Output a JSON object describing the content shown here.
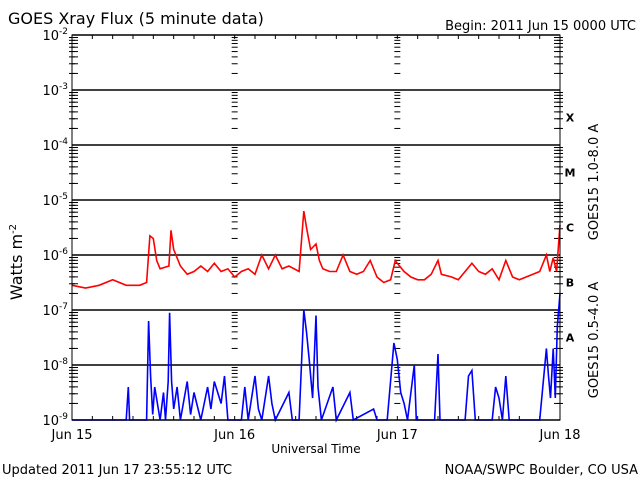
{
  "chart_data": {
    "type": "line",
    "title": "GOES Xray Flux (5 minute data)",
    "begin_label": "Begin:  2011 Jun 15 0000 UTC",
    "xlabel": "Universal Time",
    "ylabel": "Watts m",
    "ylabel_sup": "-2",
    "x_unit": "hours since 2011 Jun 15 0000 UTC",
    "xlim": [
      0,
      72
    ],
    "ylim": [
      1e-09,
      0.01
    ],
    "yscale": "log",
    "grid": true,
    "x_ticks": [
      {
        "hour": 0,
        "label": "Jun 15"
      },
      {
        "hour": 24,
        "label": "Jun 16"
      },
      {
        "hour": 48,
        "label": "Jun 17"
      },
      {
        "hour": 72,
        "label": "Jun 18"
      }
    ],
    "y_ticks": [
      {
        "exp": -2,
        "base": "10",
        "sup": "-2"
      },
      {
        "exp": -3,
        "base": "10",
        "sup": "-3"
      },
      {
        "exp": -4,
        "base": "10",
        "sup": "-4"
      },
      {
        "exp": -5,
        "base": "10",
        "sup": "-5"
      },
      {
        "exp": -6,
        "base": "10",
        "sup": "-6"
      },
      {
        "exp": -7,
        "base": "10",
        "sup": "-7"
      },
      {
        "exp": -8,
        "base": "10",
        "sup": "-8"
      },
      {
        "exp": -9,
        "base": "10",
        "sup": "-9"
      }
    ],
    "flare_classes": [
      {
        "label": "X",
        "exp": -3.5
      },
      {
        "label": "M",
        "exp": -4.5
      },
      {
        "label": "C",
        "exp": -5.5
      },
      {
        "label": "B",
        "exp": -6.5
      },
      {
        "label": "A",
        "exp": -7.5
      }
    ],
    "series": [
      {
        "name": "GOES15 1.0-8.0 A",
        "color": "#ff0000",
        "points_log10": [
          [
            0,
            -6.55
          ],
          [
            2,
            -6.6
          ],
          [
            4,
            -6.55
          ],
          [
            6,
            -6.45
          ],
          [
            8,
            -6.55
          ],
          [
            10,
            -6.55
          ],
          [
            11,
            -6.5
          ],
          [
            11.5,
            -5.65
          ],
          [
            12,
            -5.7
          ],
          [
            12.5,
            -6.1
          ],
          [
            13,
            -6.25
          ],
          [
            14.3,
            -6.2
          ],
          [
            14.6,
            -5.55
          ],
          [
            15,
            -5.9
          ],
          [
            16,
            -6.2
          ],
          [
            17,
            -6.35
          ],
          [
            18,
            -6.3
          ],
          [
            19,
            -6.2
          ],
          [
            20,
            -6.3
          ],
          [
            21,
            -6.15
          ],
          [
            22,
            -6.3
          ],
          [
            23,
            -6.25
          ],
          [
            24,
            -6.4
          ],
          [
            25,
            -6.3
          ],
          [
            26,
            -6.25
          ],
          [
            27,
            -6.35
          ],
          [
            28,
            -6.0
          ],
          [
            29,
            -6.25
          ],
          [
            30,
            -6.0
          ],
          [
            31,
            -6.25
          ],
          [
            32,
            -6.2
          ],
          [
            33.5,
            -6.3
          ],
          [
            34.2,
            -5.2
          ],
          [
            34.6,
            -5.5
          ],
          [
            35.2,
            -5.9
          ],
          [
            36,
            -5.8
          ],
          [
            36.5,
            -6.1
          ],
          [
            37,
            -6.25
          ],
          [
            38,
            -6.3
          ],
          [
            39,
            -6.3
          ],
          [
            40,
            -6.0
          ],
          [
            41,
            -6.3
          ],
          [
            42,
            -6.35
          ],
          [
            43,
            -6.3
          ],
          [
            44,
            -6.1
          ],
          [
            45,
            -6.4
          ],
          [
            46,
            -6.5
          ],
          [
            47,
            -6.45
          ],
          [
            47.7,
            -6.1
          ],
          [
            48,
            -6.15
          ],
          [
            49,
            -6.3
          ],
          [
            50,
            -6.4
          ],
          [
            51,
            -6.45
          ],
          [
            52,
            -6.45
          ],
          [
            53,
            -6.35
          ],
          [
            54,
            -6.1
          ],
          [
            54.5,
            -6.35
          ],
          [
            56,
            -6.4
          ],
          [
            57,
            -6.45
          ],
          [
            58,
            -6.3
          ],
          [
            59,
            -6.15
          ],
          [
            60,
            -6.3
          ],
          [
            61,
            -6.35
          ],
          [
            62,
            -6.25
          ],
          [
            63,
            -6.45
          ],
          [
            64,
            -6.1
          ],
          [
            65,
            -6.4
          ],
          [
            66,
            -6.45
          ],
          [
            67,
            -6.4
          ],
          [
            68,
            -6.35
          ],
          [
            69,
            -6.3
          ],
          [
            70,
            -6.0
          ],
          [
            70.5,
            -6.3
          ],
          [
            71,
            -6.05
          ],
          [
            71.5,
            -6.3
          ],
          [
            72,
            -5.45
          ]
        ]
      },
      {
        "name": "GOES15 0.5-4.0 A",
        "color": "#0000ff",
        "points_log10": [
          [
            0,
            -9
          ],
          [
            8,
            -9
          ],
          [
            8.3,
            -8.4
          ],
          [
            8.5,
            -9
          ],
          [
            11,
            -9
          ],
          [
            11.3,
            -7.2
          ],
          [
            11.6,
            -8.2
          ],
          [
            11.9,
            -8.9
          ],
          [
            12.2,
            -8.4
          ],
          [
            13,
            -9
          ],
          [
            13.5,
            -8.5
          ],
          [
            13.8,
            -9
          ],
          [
            14.2,
            -8.3
          ],
          [
            14.4,
            -7.05
          ],
          [
            14.7,
            -8.3
          ],
          [
            15,
            -8.8
          ],
          [
            15.5,
            -8.4
          ],
          [
            16,
            -9
          ],
          [
            17,
            -8.3
          ],
          [
            17.5,
            -8.9
          ],
          [
            18,
            -8.5
          ],
          [
            19,
            -9
          ],
          [
            20,
            -8.4
          ],
          [
            20.5,
            -8.8
          ],
          [
            21,
            -8.3
          ],
          [
            22,
            -8.7
          ],
          [
            22.5,
            -8.2
          ],
          [
            23,
            -9
          ],
          [
            25,
            -9
          ],
          [
            25.5,
            -8.4
          ],
          [
            26,
            -9
          ],
          [
            27,
            -8.2
          ],
          [
            27.5,
            -8.8
          ],
          [
            28,
            -9
          ],
          [
            29,
            -8.2
          ],
          [
            29.5,
            -8.7
          ],
          [
            30,
            -9
          ],
          [
            32,
            -8.5
          ],
          [
            32.5,
            -9
          ],
          [
            33.5,
            -9
          ],
          [
            34.2,
            -7.0
          ],
          [
            34.6,
            -7.4
          ],
          [
            35,
            -7.9
          ],
          [
            35.5,
            -8.6
          ],
          [
            36,
            -7.1
          ],
          [
            36.3,
            -8.4
          ],
          [
            36.8,
            -9
          ],
          [
            38.5,
            -8.4
          ],
          [
            39,
            -9
          ],
          [
            41,
            -8.5
          ],
          [
            41.5,
            -9
          ],
          [
            44.5,
            -8.8
          ],
          [
            45,
            -9
          ],
          [
            46.5,
            -9
          ],
          [
            47.5,
            -7.6
          ],
          [
            48,
            -7.9
          ],
          [
            48.5,
            -8.5
          ],
          [
            49,
            -8.7
          ],
          [
            49.5,
            -9
          ],
          [
            50.5,
            -8.0
          ],
          [
            50.8,
            -9
          ],
          [
            53.5,
            -9
          ],
          [
            54,
            -7.8
          ],
          [
            54.3,
            -9
          ],
          [
            58,
            -9
          ],
          [
            58.5,
            -8.2
          ],
          [
            59,
            -8.1
          ],
          [
            59.5,
            -9
          ],
          [
            62,
            -9
          ],
          [
            62.5,
            -8.4
          ],
          [
            63,
            -8.6
          ],
          [
            63.5,
            -9
          ],
          [
            64,
            -8.2
          ],
          [
            64.5,
            -9
          ],
          [
            69,
            -9
          ],
          [
            70,
            -7.7
          ],
          [
            70.3,
            -8.2
          ],
          [
            70.6,
            -8.6
          ],
          [
            71,
            -7.7
          ],
          [
            71.3,
            -8.6
          ],
          [
            71.6,
            -7.3
          ],
          [
            72,
            -6.7
          ]
        ]
      }
    ]
  },
  "footer": {
    "updated": "Updated 2011 Jun 17 23:55:12 UTC",
    "credit": "NOAA/SWPC Boulder, CO USA"
  }
}
